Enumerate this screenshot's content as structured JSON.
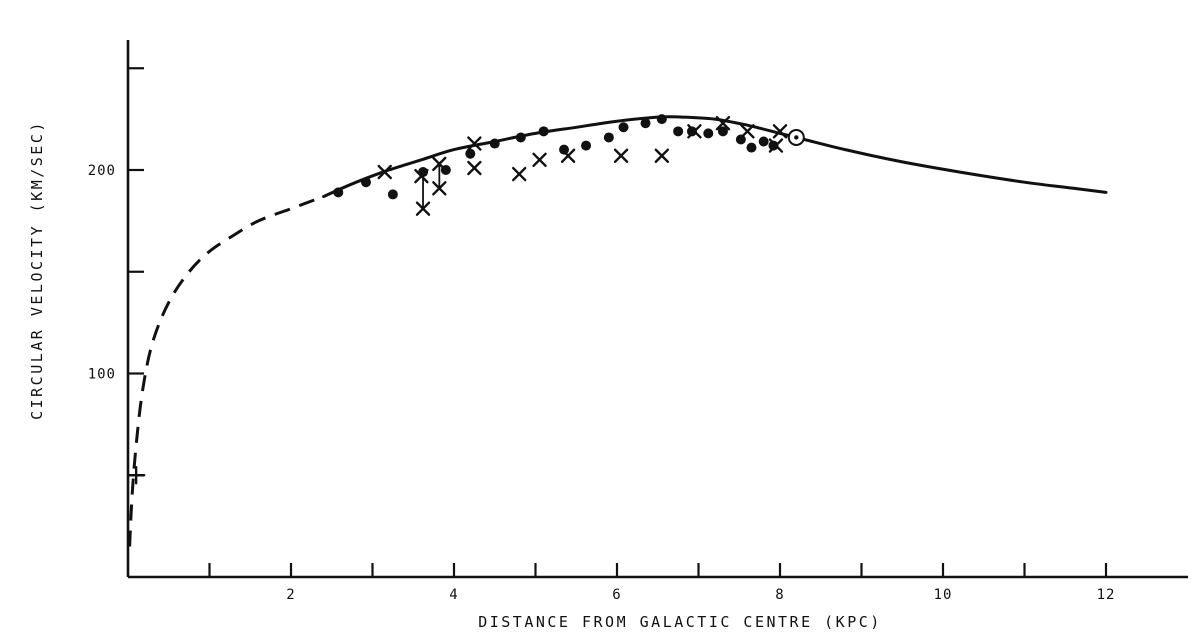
{
  "chart_data": {
    "type": "scatter",
    "xlabel": "DISTANCE FROM GALACTIC CENTRE (KPC)",
    "ylabel": "CIRCULAR VELOCITY (KM/SEC)",
    "xlim": [
      0,
      13
    ],
    "ylim": [
      0,
      260
    ],
    "x_ticks": [
      1,
      2,
      3,
      4,
      5,
      6,
      7,
      8,
      9,
      10,
      11,
      12
    ],
    "x_tick_labels": [
      {
        "x": 2,
        "label": "2"
      },
      {
        "x": 4,
        "label": "4"
      },
      {
        "x": 6,
        "label": "6"
      },
      {
        "x": 8,
        "label": "8"
      },
      {
        "x": 10,
        "label": "10"
      },
      {
        "x": 12,
        "label": "12"
      }
    ],
    "y_ticks": [
      50,
      100,
      150,
      200,
      250
    ],
    "y_tick_labels": [
      {
        "y": 100,
        "label": "100"
      },
      {
        "y": 200,
        "label": "200"
      }
    ],
    "grid": false,
    "curve_dashed": {
      "style": "dashed",
      "x": [
        0.02,
        0.05,
        0.1,
        0.18,
        0.3,
        0.5,
        0.75,
        1.0,
        1.3,
        1.6,
        2.0,
        2.4
      ],
      "y": [
        15,
        40,
        65,
        92,
        115,
        135,
        150,
        160,
        168,
        175,
        181,
        187
      ]
    },
    "curve_solid": {
      "style": "solid",
      "x": [
        2.4,
        2.8,
        3.2,
        3.6,
        4.0,
        4.5,
        5.0,
        5.5,
        6.0,
        6.5,
        6.8,
        7.2,
        7.6,
        8.0,
        8.3,
        8.8,
        9.5,
        10.2,
        11.0,
        11.6,
        12.0
      ],
      "y": [
        187,
        194,
        200,
        205,
        210,
        214,
        218,
        221,
        224,
        226,
        226,
        225,
        222,
        218,
        215,
        210,
        204,
        199,
        194,
        191,
        189
      ]
    },
    "series": [
      {
        "marker": "dot",
        "x": [
          2.58,
          2.92,
          3.25,
          3.62,
          3.9,
          4.2,
          4.5,
          4.82,
          5.1,
          5.35,
          5.62,
          5.9,
          6.08,
          6.35,
          6.55,
          6.75,
          6.92,
          7.12,
          7.3,
          7.52,
          7.65,
          7.8,
          7.92
        ],
        "y": [
          189,
          194,
          188,
          199,
          200,
          208,
          213,
          216,
          219,
          210,
          212,
          216,
          221,
          223,
          225,
          219,
          219,
          218,
          219,
          215,
          211,
          214,
          212
        ]
      },
      {
        "marker": "x",
        "x": [
          3.15,
          3.6,
          3.62,
          3.82,
          3.82,
          4.25,
          4.25,
          4.8,
          5.05,
          5.4,
          6.05,
          6.55,
          6.95,
          7.3,
          7.6,
          7.95,
          8.0
        ],
        "y": [
          199,
          197,
          181,
          203,
          191,
          213,
          201,
          198,
          205,
          207,
          207,
          207,
          219,
          223,
          219,
          212,
          219
        ]
      }
    ],
    "error_bars": [
      {
        "x": 3.62,
        "y_low": 181,
        "y_high": 197
      },
      {
        "x": 3.82,
        "y_low": 191,
        "y_high": 203
      }
    ],
    "special_markers": [
      {
        "name": "sun",
        "x": 8.2,
        "y": 216
      },
      {
        "name": "cross",
        "x": 0.1,
        "y": 50
      }
    ]
  }
}
